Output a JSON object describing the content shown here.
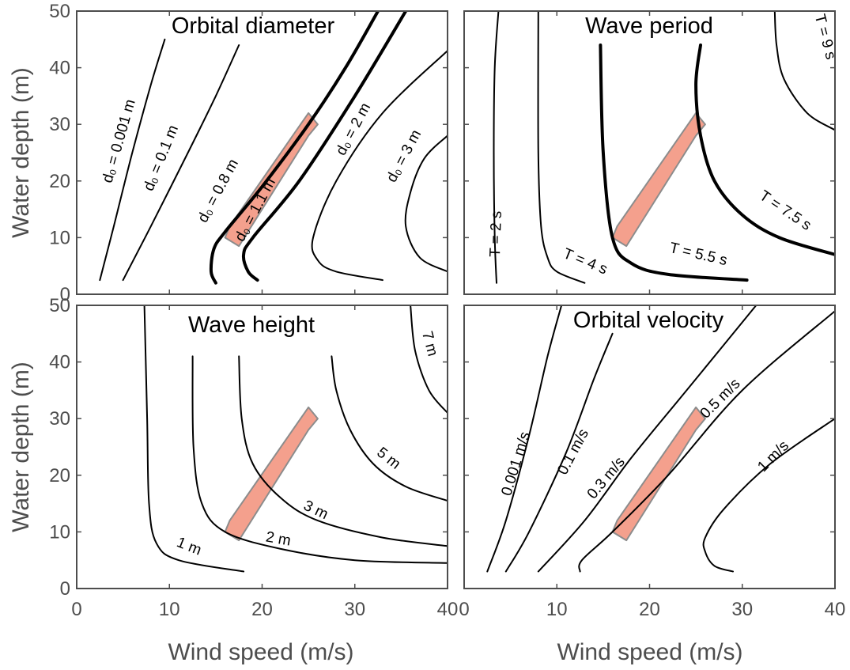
{
  "colors": {
    "region_fill": "#f4a08d",
    "region_stroke": "#8c8c8c",
    "axis": "#4d4d4d",
    "curve": "#000000"
  },
  "axes": {
    "xlabel": "Wind speed (m/s)",
    "ylabel": "Water depth (m)"
  },
  "chart_data": [
    {
      "type": "line",
      "title": "Orbital diameter",
      "xlim": [
        0,
        40
      ],
      "ylim": [
        0,
        50
      ],
      "xticks": [
        "0",
        "10",
        "20",
        "30",
        "40"
      ],
      "yticks": [
        "0",
        "10",
        "20",
        "30",
        "40",
        "50"
      ],
      "xtick_labels_shown": false,
      "ylabel_shown": true,
      "xlabel_shown": false,
      "highlight_region": [
        [
          16,
          10
        ],
        [
          16.5,
          12
        ],
        [
          25,
          32
        ],
        [
          26,
          30
        ],
        [
          25,
          28
        ],
        [
          17.5,
          8.5
        ]
      ],
      "series": [
        {
          "name": "d0 = 0.001 m",
          "label": "d₀ = 0.001 m",
          "bold": false,
          "x": [
            2.5,
            4,
            6,
            8,
            9.5
          ],
          "y": [
            2.5,
            12,
            25,
            37,
            45
          ]
        },
        {
          "name": "d0 = 0.1 m",
          "label": "d₀ = 0.1 m",
          "bold": false,
          "x": [
            5,
            8,
            12,
            15,
            17.5
          ],
          "y": [
            2.5,
            12,
            25,
            35,
            44
          ]
        },
        {
          "name": "d0 = 0.8 m",
          "label": "d₀ = 0.8 m",
          "bold": true,
          "x": [
            15,
            14.5,
            14.8,
            16,
            20,
            25,
            29,
            32.5
          ],
          "y": [
            2,
            4,
            8,
            11,
            19,
            30,
            40,
            50
          ]
        },
        {
          "name": "d0 = 1.1 m",
          "label": "d₀ = 1.1 m",
          "bold": true,
          "x": [
            19.5,
            18.5,
            18,
            19,
            24,
            30,
            35.5
          ],
          "y": [
            2.5,
            4,
            7,
            10,
            20,
            35,
            50
          ]
        },
        {
          "name": "d0 = 2 m",
          "label": "d₀ = 2 m",
          "bold": false,
          "x": [
            33,
            28,
            26,
            25.5,
            28,
            33,
            40
          ],
          "y": [
            2.5,
            4,
            6,
            10,
            20,
            32,
            43
          ]
        },
        {
          "name": "d0 = 3 m",
          "label": "d₀ = 3 m",
          "bold": false,
          "x": [
            40,
            37,
            35.5,
            36,
            37.5,
            40
          ],
          "y": [
            4,
            6.5,
            12,
            18,
            24,
            28
          ]
        }
      ],
      "annotations": [
        "d₀ = 0.001 m",
        "d₀ = 0.1 m",
        "d₀ = 0.8 m",
        "d₀ = 1.1 m",
        "d₀ = 2 m",
        "d₀ = 3 m"
      ]
    },
    {
      "type": "line",
      "title": "Wave period",
      "xlim": [
        0,
        40
      ],
      "ylim": [
        0,
        50
      ],
      "xticks": [
        "0",
        "10",
        "20",
        "30",
        "40"
      ],
      "yticks": [
        "0",
        "10",
        "20",
        "30",
        "40",
        "50"
      ],
      "xtick_labels_shown": false,
      "ylabel_shown": false,
      "xlabel_shown": false,
      "highlight_region": [
        [
          16,
          10
        ],
        [
          16.5,
          12
        ],
        [
          25,
          32
        ],
        [
          26,
          30
        ],
        [
          25,
          28
        ],
        [
          17.5,
          8.5
        ]
      ],
      "series": [
        {
          "name": "T = 2 s",
          "label": "T = 2 s",
          "bold": false,
          "x": [
            3.5,
            3.3,
            3.2,
            3.3,
            3.7
          ],
          "y": [
            2,
            10,
            25,
            40,
            50
          ]
        },
        {
          "name": "T = 4 s",
          "label": "T = 4 s",
          "bold": false,
          "x": [
            13,
            10,
            9,
            8.3,
            8.0,
            8.0
          ],
          "y": [
            2,
            4,
            6.5,
            12,
            25,
            50
          ]
        },
        {
          "name": "T = 5.5 s",
          "label": "T = 5.5 s",
          "bold": true,
          "x": [
            30.5,
            22,
            18,
            16,
            15,
            14.7
          ],
          "y": [
            2.5,
            3.5,
            5.5,
            10,
            25,
            44
          ]
        },
        {
          "name": "T = 7.5 s",
          "label": "T = 7.5 s",
          "bold": true,
          "x": [
            40,
            34,
            30,
            27,
            25.5,
            25,
            25.5
          ],
          "y": [
            7,
            10,
            14,
            20,
            28,
            37,
            44
          ]
        },
        {
          "name": "T = 9 s",
          "label": "T = 9 s",
          "bold": false,
          "x": [
            40,
            37,
            34.5,
            33.7,
            33.5
          ],
          "y": [
            29,
            32,
            38,
            44,
            50
          ]
        }
      ],
      "annotations": [
        "T = 2 s",
        "T = 4 s",
        "T = 5.5 s",
        "T = 7.5 s",
        "T = 9 s"
      ]
    },
    {
      "type": "line",
      "title": "Wave height",
      "xlim": [
        0,
        40
      ],
      "ylim": [
        0,
        50
      ],
      "xticks": [
        "0",
        "10",
        "20",
        "30",
        "40"
      ],
      "yticks": [
        "0",
        "10",
        "20",
        "30",
        "40",
        "50"
      ],
      "xtick_labels_shown": true,
      "ylabel_shown": true,
      "xlabel_shown": true,
      "highlight_region": [
        [
          16,
          10
        ],
        [
          16.5,
          12
        ],
        [
          25,
          32
        ],
        [
          26,
          30
        ],
        [
          25,
          28
        ],
        [
          17.5,
          8.5
        ]
      ],
      "series": [
        {
          "name": "1 m",
          "label": "1 m",
          "bold": false,
          "x": [
            7.3,
            7.6,
            7.8,
            8.6,
            11,
            18
          ],
          "y": [
            50,
            30,
            15,
            8,
            5,
            3
          ]
        },
        {
          "name": "2 m",
          "label": "2 m",
          "bold": false,
          "x": [
            12.5,
            12.6,
            13.5,
            16,
            22,
            30,
            40
          ],
          "y": [
            41,
            25,
            15,
            10,
            7,
            5,
            4.5
          ]
        },
        {
          "name": "3 m",
          "label": "3 m",
          "bold": false,
          "x": [
            17.5,
            17.8,
            19,
            22,
            26,
            33,
            40
          ],
          "y": [
            41,
            30,
            22,
            16,
            12,
            9,
            7.5
          ]
        },
        {
          "name": "5 m",
          "label": "5 m",
          "bold": false,
          "x": [
            27.5,
            28,
            29.5,
            32,
            35.5,
            40
          ],
          "y": [
            41,
            35,
            28,
            22,
            18,
            15.5
          ]
        },
        {
          "name": "7 m",
          "label": "7 m",
          "bold": false,
          "x": [
            36,
            36.5,
            38,
            40
          ],
          "y": [
            50,
            42,
            35,
            31
          ]
        }
      ],
      "annotations": [
        "1 m",
        "2 m",
        "3 m",
        "5 m",
        "7 m"
      ]
    },
    {
      "type": "line",
      "title": "Orbital velocity",
      "xlim": [
        0,
        40
      ],
      "ylim": [
        0,
        50
      ],
      "xticks": [
        "0",
        "10",
        "20",
        "30",
        "40"
      ],
      "yticks": [
        "0",
        "10",
        "20",
        "30",
        "40",
        "50"
      ],
      "xtick_labels_shown": true,
      "ylabel_shown": false,
      "xlabel_shown": true,
      "highlight_region": [
        [
          16,
          10
        ],
        [
          16.5,
          12
        ],
        [
          25,
          32
        ],
        [
          26,
          30
        ],
        [
          25,
          28
        ],
        [
          17.5,
          8.5
        ]
      ],
      "series": [
        {
          "name": "0.001 m/s",
          "label": "0.001 m/s",
          "bold": false,
          "x": [
            2.5,
            4.5,
            7,
            9,
            10.5
          ],
          "y": [
            3,
            12,
            27,
            41,
            50
          ]
        },
        {
          "name": "0.1 m/s",
          "label": "0.1 m/s",
          "bold": false,
          "x": [
            4.5,
            7,
            11,
            14,
            16
          ],
          "y": [
            3,
            10,
            24,
            37,
            45
          ]
        },
        {
          "name": "0.3 m/s",
          "label": "0.3 m/s",
          "bold": false,
          "x": [
            8,
            13,
            18,
            24,
            31.5
          ],
          "y": [
            3,
            12,
            23,
            35,
            50
          ]
        },
        {
          "name": "0.5 m/s",
          "label": "0.5 m/s",
          "bold": false,
          "x": [
            12.5,
            12.7,
            16,
            22,
            30,
            40
          ],
          "y": [
            3,
            5,
            10,
            20,
            35,
            49
          ]
        },
        {
          "name": "1 m/s",
          "label": "1 m/s",
          "bold": false,
          "x": [
            29,
            27,
            26,
            26,
            28,
            33,
            40
          ],
          "y": [
            3,
            4,
            6.5,
            9,
            14,
            22,
            30
          ]
        }
      ],
      "annotations": [
        "0.001 m/s",
        "0.1 m/s",
        "0.3 m/s",
        "0.5 m/s",
        "1 m/s"
      ]
    }
  ]
}
